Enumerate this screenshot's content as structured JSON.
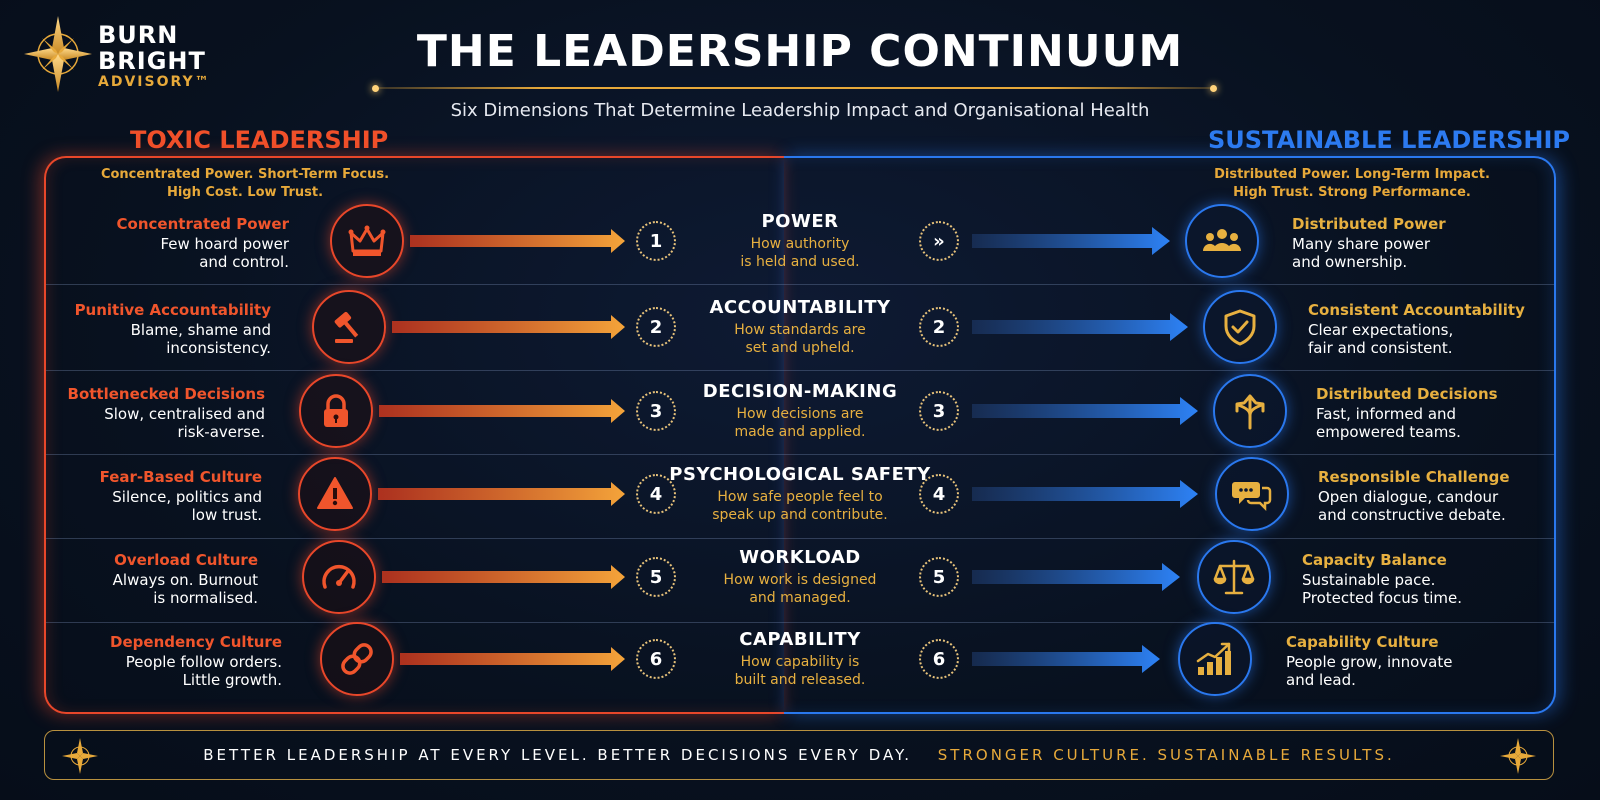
{
  "brand": {
    "line1": "BURN",
    "line2": "BRIGHT",
    "line3": "ADVISORY™"
  },
  "title": "THE LEADERSHIP CONTINUUM",
  "subtitle": "Six Dimensions That Determine Leadership Impact and Organisational Health",
  "toxic": {
    "heading": "TOXIC LEADERSHIP",
    "tagline1": "Concentrated Power. Short-Term Focus.",
    "tagline2": "High Cost. Low Trust."
  },
  "sustainable": {
    "heading": "SUSTAINABLE LEADERSHIP",
    "tagline1": "Distributed Power. Long-Term Impact.",
    "tagline2": "High Trust. Strong Performance."
  },
  "rows": [
    {
      "num": "1",
      "right_num": "»",
      "left_title": "Concentrated Power",
      "left_desc1": "Few hoard power",
      "left_desc2": "and control.",
      "left_icon": "crown-icon",
      "center_title": "POWER",
      "center_desc1": "How authority",
      "center_desc2": "is held and used.",
      "right_title": "Distributed Power",
      "right_desc1": "Many share power",
      "right_desc2": "and ownership.",
      "right_icon": "people-group-icon"
    },
    {
      "num": "2",
      "right_num": "2",
      "left_title": "Punitive Accountability",
      "left_desc1": "Blame, shame and",
      "left_desc2": "inconsistency.",
      "left_icon": "gavel-icon",
      "center_title": "ACCOUNTABILITY",
      "center_desc1": "How standards are",
      "center_desc2": "set and upheld.",
      "right_title": "Consistent Accountability",
      "right_desc1": "Clear expectations,",
      "right_desc2": "fair and consistent.",
      "right_icon": "shield-check-icon"
    },
    {
      "num": "3",
      "right_num": "3",
      "left_title": "Bottlenecked Decisions",
      "left_desc1": "Slow, centralised and",
      "left_desc2": "risk-averse.",
      "left_icon": "padlock-icon",
      "center_title": "DECISION-MAKING",
      "center_desc1": "How decisions are",
      "center_desc2": "made and applied.",
      "right_title": "Distributed Decisions",
      "right_desc1": "Fast, informed and",
      "right_desc2": "empowered teams.",
      "right_icon": "branching-arrows-icon"
    },
    {
      "num": "4",
      "right_num": "4",
      "left_title": "Fear-Based Culture",
      "left_desc1": "Silence, politics and",
      "left_desc2": "low trust.",
      "left_icon": "warning-triangle-icon",
      "center_title": "PSYCHOLOGICAL SAFETY",
      "center_desc1": "How safe people feel to",
      "center_desc2": "speak up and contribute.",
      "right_title": "Responsible Challenge",
      "right_desc1": "Open dialogue, candour",
      "right_desc2": "and constructive debate.",
      "right_icon": "speech-bubbles-icon"
    },
    {
      "num": "5",
      "right_num": "5",
      "left_title": "Overload Culture",
      "left_desc1": "Always on. Burnout",
      "left_desc2": "is normalised.",
      "left_icon": "speedometer-icon",
      "center_title": "WORKLOAD",
      "center_desc1": "How work is designed",
      "center_desc2": "and managed.",
      "right_title": "Capacity Balance",
      "right_desc1": "Sustainable pace.",
      "right_desc2": "Protected focus time.",
      "right_icon": "balance-scale-icon"
    },
    {
      "num": "6",
      "right_num": "6",
      "left_title": "Dependency Culture",
      "left_desc1": "People follow orders.",
      "left_desc2": "Little growth.",
      "left_icon": "chain-link-icon",
      "center_title": "CAPABILITY",
      "center_desc1": "How capability is",
      "center_desc2": "built and released.",
      "right_title": "Capability Culture",
      "right_desc1": "People grow, innovate",
      "right_desc2": "and lead.",
      "right_icon": "growth-chart-icon"
    }
  ],
  "footer": {
    "part1": "BETTER LEADERSHIP AT EVERY LEVEL. BETTER DECISIONS EVERY DAY.",
    "part2": "STRONGER CULTURE. SUSTAINABLE RESULTS."
  },
  "colors": {
    "toxic": "#e8472a",
    "sustainable": "#2a78ee",
    "gold": "#e7a93a",
    "background": "#08111f"
  }
}
